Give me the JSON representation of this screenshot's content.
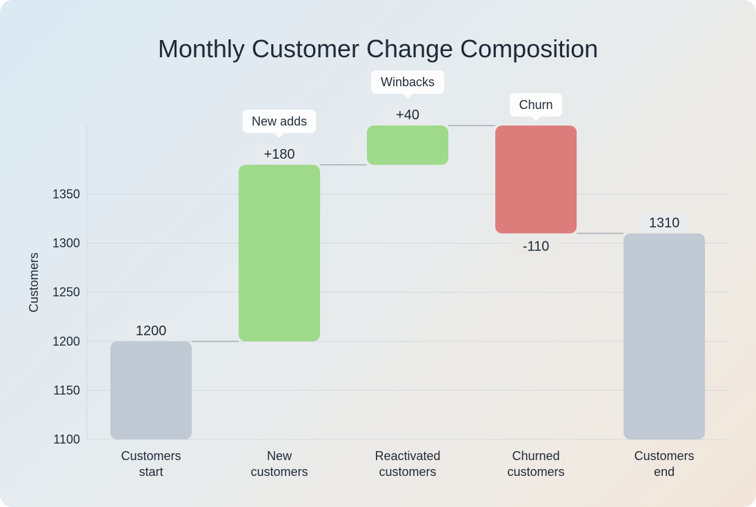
{
  "chart_data": {
    "type": "waterfall",
    "title": "Monthly Customer Change Composition",
    "xlabel": "",
    "ylabel": "Customers",
    "ylim": [
      1100,
      1376
    ],
    "yticks": [
      1100,
      1150,
      1200,
      1250,
      1300,
      1350
    ],
    "grid": true,
    "categories": [
      [
        "Customers",
        "start"
      ],
      [
        "New",
        "customers"
      ],
      [
        "Reactivated",
        "customers"
      ],
      [
        "Churned",
        "customers"
      ],
      [
        "Customers",
        "end"
      ]
    ],
    "steps": [
      {
        "kind": "total",
        "value": 1200,
        "label": "1200"
      },
      {
        "kind": "delta",
        "value": 180,
        "label": "+180",
        "callout": "New adds"
      },
      {
        "kind": "delta",
        "value": 40,
        "label": "+40",
        "callout": "Winbacks"
      },
      {
        "kind": "delta",
        "value": -110,
        "label": "-110",
        "callout": "Churn"
      },
      {
        "kind": "total",
        "value": 1310,
        "label": "1310"
      }
    ],
    "colors": {
      "total": "#c0c9d4",
      "increase": "#9fd98a",
      "decrease": "#dc7d7c",
      "grid": "#d3d8dc",
      "connector": "#a7adb5",
      "text": "#1f2a37"
    }
  }
}
